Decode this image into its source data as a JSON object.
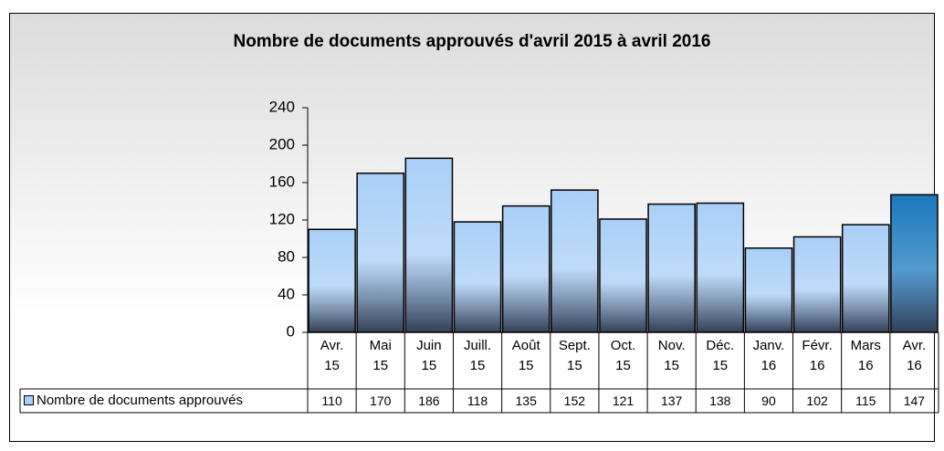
{
  "chart_data": {
    "type": "bar",
    "title": "Nombre de documents approuvés d'avril 2015 à avril 2016",
    "categories": [
      "Avr.\n15",
      "Mai\n15",
      "Juin\n15",
      "Juill.\n15",
      "Août\n15",
      "Sept.\n15",
      "Oct.\n15",
      "Nov.\n15",
      "Déc.\n15",
      "Janv.\n16",
      "Févr.\n16",
      "Mars\n16",
      "Avr.\n16"
    ],
    "series": [
      {
        "name": "Nombre de documents approuvés",
        "colors": [
          "#a9cff7",
          "#a9cff7",
          "#a9cff7",
          "#a9cff7",
          "#a9cff7",
          "#a9cff7",
          "#a9cff7",
          "#a9cff7",
          "#a9cff7",
          "#a9cff7",
          "#a9cff7",
          "#a9cff7",
          "#1b78bd"
        ],
        "values": [
          110,
          170,
          186,
          118,
          135,
          152,
          121,
          137,
          138,
          90,
          102,
          115,
          147
        ]
      }
    ],
    "ylim": [
      0,
      240
    ],
    "yticks": [
      0,
      40,
      80,
      120,
      160,
      200,
      240
    ],
    "grid": false,
    "data_table": true
  }
}
